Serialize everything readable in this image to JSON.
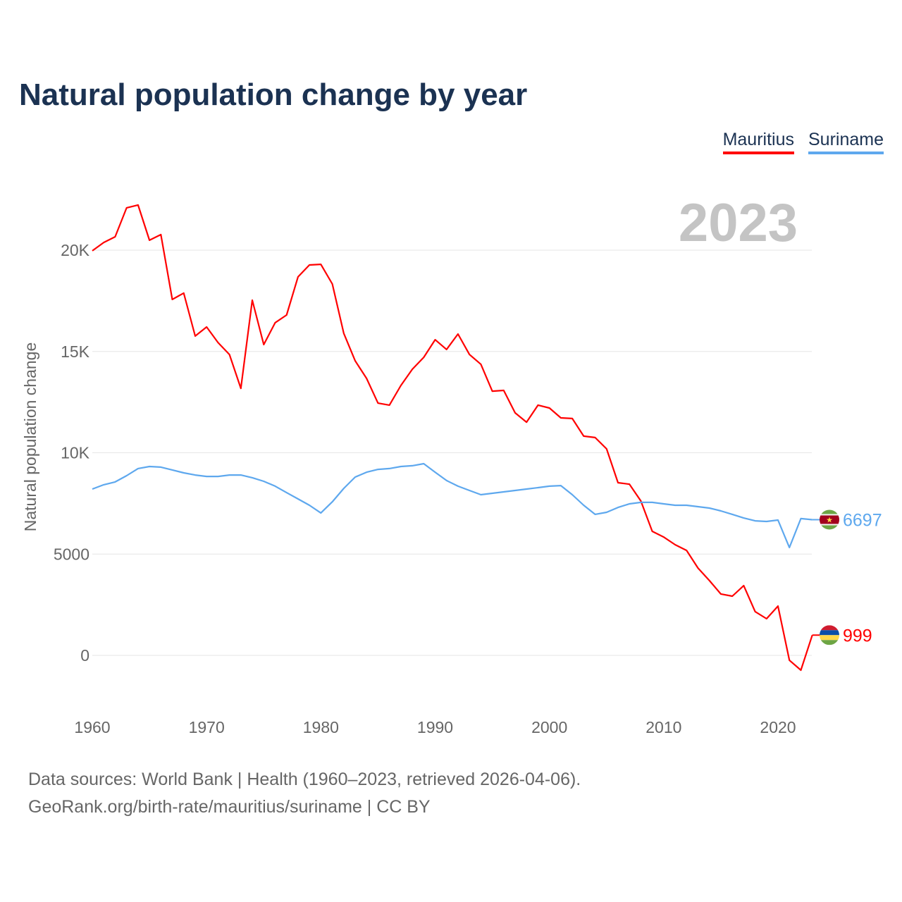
{
  "title": "Natural population change by year",
  "footer": {
    "line1": "Data sources: World Bank | Health (1960–2023, retrieved 2026-04-06).",
    "line2": "GeoRank.org/birth-rate/mauritius/suriname | CC BY"
  },
  "chart_data": {
    "type": "line",
    "title": "Natural population change by year",
    "xlabel": "",
    "ylabel": "Natural population change",
    "year_label": "2023",
    "xlim": [
      1960,
      2023
    ],
    "ylim": [
      -1500,
      23000
    ],
    "grid": true,
    "legend_position": "top-right",
    "x_ticks": [
      1960,
      1970,
      1980,
      1990,
      2000,
      2010,
      2020
    ],
    "y_ticks": [
      0,
      5000,
      10000,
      15000,
      20000
    ],
    "y_tick_labels": [
      "0",
      "5000",
      "10K",
      "15K",
      "20K"
    ],
    "x": [
      1960,
      1961,
      1962,
      1963,
      1964,
      1965,
      1966,
      1967,
      1968,
      1969,
      1970,
      1971,
      1972,
      1973,
      1974,
      1975,
      1976,
      1977,
      1978,
      1979,
      1980,
      1981,
      1982,
      1983,
      1984,
      1985,
      1986,
      1987,
      1988,
      1989,
      1990,
      1991,
      1992,
      1993,
      1994,
      1995,
      1996,
      1997,
      1998,
      1999,
      2000,
      2001,
      2002,
      2003,
      2004,
      2005,
      2006,
      2007,
      2008,
      2009,
      2010,
      2011,
      2012,
      2013,
      2014,
      2015,
      2016,
      2017,
      2018,
      2019,
      2020,
      2021,
      2022,
      2023
    ],
    "series": [
      {
        "name": "Mauritius",
        "color": "#ff0000",
        "end_label": "999",
        "values": [
          19970,
          20380,
          20660,
          22090,
          22230,
          20490,
          20770,
          17570,
          17880,
          15760,
          16210,
          15440,
          14850,
          13180,
          17530,
          15340,
          16420,
          16800,
          18680,
          19270,
          19300,
          18330,
          15900,
          14540,
          13670,
          12450,
          12350,
          13320,
          14120,
          14710,
          15580,
          15100,
          15860,
          14850,
          14370,
          13040,
          13080,
          11970,
          11510,
          12350,
          12210,
          11720,
          11690,
          10820,
          10750,
          10190,
          8520,
          8450,
          7620,
          6120,
          5840,
          5460,
          5180,
          4310,
          3690,
          3030,
          2920,
          3440,
          2160,
          1810,
          2430,
          -240,
          -730,
          999
        ]
      },
      {
        "name": "Suriname",
        "color": "#5ea8ee",
        "end_label": "6697",
        "values": [
          8210,
          8420,
          8560,
          8870,
          9220,
          9320,
          9290,
          9150,
          9010,
          8900,
          8830,
          8830,
          8900,
          8900,
          8770,
          8590,
          8350,
          8030,
          7720,
          7410,
          7030,
          7580,
          8240,
          8800,
          9040,
          9180,
          9220,
          9320,
          9360,
          9460,
          9040,
          8630,
          8350,
          8140,
          7930,
          8000,
          8070,
          8140,
          8210,
          8280,
          8350,
          8380,
          7930,
          7410,
          6960,
          7060,
          7300,
          7480,
          7550,
          7550,
          7480,
          7410,
          7410,
          7340,
          7270,
          7130,
          6960,
          6780,
          6640,
          6610,
          6680,
          5320,
          6750,
          6697
        ]
      }
    ]
  }
}
